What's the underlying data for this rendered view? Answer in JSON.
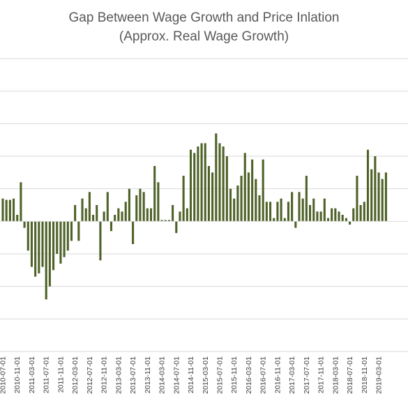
{
  "chart_data": {
    "type": "bar",
    "title": "Gap Between Wage Growth and Price Inlation",
    "subtitle": "(Approx. Real Wage Growth)",
    "xlabel": "",
    "ylabel": "",
    "ylim": [
      -2.0,
      2.5
    ],
    "grid": true,
    "legend": "none",
    "bar_color": "#4f6228",
    "x_tick_labels": [
      "2010-07-01",
      "2010-11-01",
      "2011-03-01",
      "2011-07-01",
      "2011-11-01",
      "2012-03-01",
      "2012-07-01",
      "2012-11-01",
      "2013-03-01",
      "2013-07-01",
      "2013-11-01",
      "2014-03-01",
      "2014-07-01",
      "2014-11-01",
      "2015-03-01",
      "2015-07-01",
      "2015-11-01",
      "2016-03-01",
      "2016-07-01",
      "2016-11-01",
      "2017-03-01",
      "2017-07-01",
      "2017-11-01",
      "2018-03-01",
      "2018-07-01",
      "2018-11-01",
      "2019-03-01"
    ],
    "x": [
      "2010-07-01",
      "2010-08-01",
      "2010-09-01",
      "2010-10-01",
      "2010-11-01",
      "2010-12-01",
      "2011-01-01",
      "2011-02-01",
      "2011-03-01",
      "2011-04-01",
      "2011-05-01",
      "2011-06-01",
      "2011-07-01",
      "2011-08-01",
      "2011-09-01",
      "2011-10-01",
      "2011-11-01",
      "2011-12-01",
      "2012-01-01",
      "2012-02-01",
      "2012-03-01",
      "2012-04-01",
      "2012-05-01",
      "2012-06-01",
      "2012-07-01",
      "2012-08-01",
      "2012-09-01",
      "2012-10-01",
      "2012-11-01",
      "2012-12-01",
      "2013-01-01",
      "2013-02-01",
      "2013-03-01",
      "2013-04-01",
      "2013-05-01",
      "2013-06-01",
      "2013-07-01",
      "2013-08-01",
      "2013-09-01",
      "2013-10-01",
      "2013-11-01",
      "2013-12-01",
      "2014-01-01",
      "2014-02-01",
      "2014-03-01",
      "2014-04-01",
      "2014-05-01",
      "2014-06-01",
      "2014-07-01",
      "2014-08-01",
      "2014-09-01",
      "2014-10-01",
      "2014-11-01",
      "2014-12-01",
      "2015-01-01",
      "2015-02-01",
      "2015-03-01",
      "2015-04-01",
      "2015-05-01",
      "2015-06-01",
      "2015-07-01",
      "2015-08-01",
      "2015-09-01",
      "2015-10-01",
      "2015-11-01",
      "2015-12-01",
      "2016-01-01",
      "2016-02-01",
      "2016-03-01",
      "2016-04-01",
      "2016-05-01",
      "2016-06-01",
      "2016-07-01",
      "2016-08-01",
      "2016-09-01",
      "2016-10-01",
      "2016-11-01",
      "2016-12-01",
      "2017-01-01",
      "2017-02-01",
      "2017-03-01",
      "2017-04-01",
      "2017-05-01",
      "2017-06-01",
      "2017-07-01",
      "2017-08-01",
      "2017-09-01",
      "2017-10-01",
      "2017-11-01",
      "2017-12-01",
      "2018-01-01",
      "2018-02-01",
      "2018-03-01",
      "2018-04-01",
      "2018-05-01",
      "2018-06-01",
      "2018-07-01",
      "2018-08-01",
      "2018-09-01",
      "2018-10-01",
      "2018-11-01",
      "2018-12-01",
      "2019-01-01",
      "2019-02-01",
      "2019-03-01",
      "2019-04-01",
      "2019-05-01"
    ],
    "values": [
      0.35,
      0.33,
      0.33,
      0.35,
      0.1,
      0.6,
      -0.1,
      -0.45,
      -0.7,
      -0.85,
      -0.8,
      -0.7,
      -1.2,
      -1.0,
      -0.75,
      -0.5,
      -0.65,
      -0.55,
      -0.45,
      -0.3,
      0.25,
      -0.3,
      0.35,
      0.2,
      0.45,
      0.1,
      0.25,
      -0.6,
      0.15,
      0.45,
      -0.15,
      0.1,
      0.2,
      0.15,
      0.3,
      0.5,
      -0.35,
      0.4,
      0.5,
      0.45,
      0.2,
      0.2,
      0.85,
      0.6,
      0.02,
      0.02,
      0.02,
      0.25,
      -0.18,
      0.15,
      0.7,
      0.2,
      1.1,
      1.05,
      1.15,
      1.2,
      1.2,
      0.85,
      0.75,
      1.35,
      1.2,
      1.15,
      1.0,
      0.5,
      0.35,
      0.55,
      0.7,
      1.05,
      0.75,
      0.95,
      0.65,
      0.4,
      0.95,
      0.3,
      0.3,
      0.05,
      0.3,
      0.35,
      0.05,
      0.3,
      0.45,
      -0.1,
      0.45,
      0.35,
      0.7,
      0.25,
      0.35,
      0.15,
      0.15,
      0.35,
      0.05,
      0.2,
      0.2,
      0.15,
      0.1,
      0.05,
      -0.05,
      0.2,
      0.7,
      0.25,
      0.3,
      1.1,
      0.8,
      1.0,
      0.75,
      0.65,
      0.75
    ]
  }
}
